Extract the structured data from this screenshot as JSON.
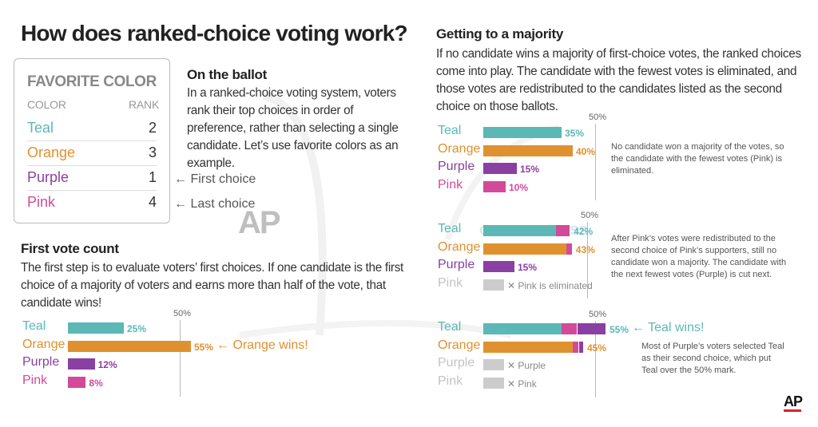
{
  "title": "How does ranked-choice voting work?",
  "colors": {
    "Teal": "#5bb8b6",
    "Orange": "#e0912f",
    "Purple": "#8a3fa2",
    "Pink": "#d24a99",
    "Gray": "#cccccc"
  },
  "ballot": {
    "heading": "FAVORITE COLOR",
    "col_color": "COLOR",
    "col_rank": "RANK",
    "rows": [
      {
        "name": "Teal",
        "rank": "2"
      },
      {
        "name": "Orange",
        "rank": "3"
      },
      {
        "name": "Purple",
        "rank": "1"
      },
      {
        "name": "Pink",
        "rank": "4"
      }
    ],
    "first_choice": "← First choice",
    "last_choice": "← Last choice"
  },
  "on_ballot": {
    "title": "On the ballot",
    "text": "In a ranked-choice voting system, voters rank their top choices in order of preference, rather than selecting a single candidate. Let’s use favorite colors as an example."
  },
  "first_count": {
    "title": "First vote count",
    "text": "The first step is to evaluate voters’ first choices. If one candidate is the first choice of a majority of voters and earns more than half of the vote, that candidate wins!"
  },
  "majority": {
    "title": "Getting to a majority",
    "text": "If no candidate wins a majority of first-choice votes, the ranked choices come into play. The candidate with the fewest votes is eliminated, and those votes are redistributed to the candidates listed as the second choice on those ballots."
  },
  "chart_data": [
    {
      "type": "bar",
      "orientation": "horizontal",
      "reference_label": "50%",
      "reference_value": 50,
      "categories": [
        "Teal",
        "Orange",
        "Purple",
        "Pink"
      ],
      "values": [
        25,
        55,
        12,
        8
      ],
      "labels": [
        "25%",
        "55%",
        "12%",
        "8%"
      ],
      "winner_note": "← Orange wins!"
    },
    {
      "type": "bar",
      "orientation": "horizontal",
      "reference_label": "50%",
      "reference_value": 50,
      "categories": [
        "Teal",
        "Orange",
        "Purple",
        "Pink"
      ],
      "values": [
        35,
        40,
        15,
        10
      ],
      "labels": [
        "35%",
        "40%",
        "15%",
        "10%"
      ],
      "note": "No candidate won a majority of the votes, so the candidate with the fewest votes (Pink) is eliminated."
    },
    {
      "type": "bar",
      "orientation": "horizontal",
      "stacked": true,
      "reference_label": "50%",
      "reference_value": 50,
      "categories": [
        "Teal",
        "Orange",
        "Purple",
        "Pink"
      ],
      "series": [
        {
          "values": [
            35,
            40,
            15,
            0
          ]
        },
        {
          "values": [
            7,
            3,
            0,
            0
          ]
        }
      ],
      "totals": [
        42,
        43,
        15,
        0
      ],
      "labels": [
        "42%",
        "43%",
        "15%",
        ""
      ],
      "eliminated": [
        "",
        "",
        "",
        "✕ Pink is eliminated"
      ],
      "note": "After Pink’s votes were redistributed to the second choice of Pink’s supporters, still no candidate won a majority. The candidate with the next fewest votes (Purple) is cut next."
    },
    {
      "type": "bar",
      "orientation": "horizontal",
      "stacked": true,
      "reference_label": "50%",
      "reference_value": 50,
      "categories": [
        "Teal",
        "Orange",
        "Purple",
        "Pink"
      ],
      "series": [
        {
          "values": [
            35,
            40,
            0,
            0
          ]
        },
        {
          "values": [
            7,
            3,
            0,
            0
          ]
        },
        {
          "values": [
            13,
            2,
            0,
            0
          ]
        }
      ],
      "totals": [
        55,
        45,
        0,
        0
      ],
      "labels": [
        "55%",
        "45%",
        "",
        ""
      ],
      "eliminated": [
        "",
        "",
        "✕ Purple",
        "✕ Pink"
      ],
      "winner_note": "← Teal wins!",
      "note": "Most of Purple’s voters selected Teal as their second choice, which put Teal over the 50% mark."
    }
  ],
  "logo": "AP",
  "watermark": "OCIATED PRESS"
}
